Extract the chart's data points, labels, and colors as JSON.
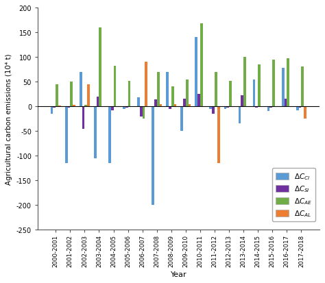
{
  "categories": [
    "2000-2001",
    "2001-2002",
    "2002-2003",
    "2003-2004",
    "2004-2005",
    "2005-2006",
    "2006-2007",
    "2007-2008",
    "2008-2009",
    "2009-2010",
    "2010-2011",
    "2011-2012",
    "2012-2013",
    "2013-2014",
    "2014-2015",
    "2015-2016",
    "2016-2017",
    "2017-2018"
  ],
  "CI": [
    -15,
    -115,
    70,
    -105,
    -115,
    -5,
    18,
    -200,
    70,
    -50,
    140,
    -5,
    -5,
    -35,
    55,
    -10,
    78,
    -8
  ],
  "SI": [
    -3,
    -3,
    -45,
    20,
    -8,
    -3,
    -20,
    14,
    -5,
    16,
    25,
    -15,
    -3,
    22,
    -3,
    -3,
    15,
    -3
  ],
  "AE": [
    45,
    50,
    3,
    160,
    82,
    52,
    -25,
    70,
    40,
    55,
    168,
    70,
    52,
    100,
    85,
    95,
    97,
    81
  ],
  "AL": [
    2,
    3,
    45,
    0,
    0,
    0,
    90,
    5,
    5,
    5,
    0,
    -115,
    0,
    0,
    0,
    0,
    0,
    -25
  ],
  "color_CI": "#5b9bd5",
  "color_SI": "#7030a0",
  "color_AE": "#70ad47",
  "color_AL": "#ed7d31",
  "ylabel": "Agricultural carbon emissions (10⁴ t)",
  "xlabel": "Year",
  "ylim": [
    -250,
    200
  ],
  "yticks": [
    -250,
    -200,
    -150,
    -100,
    -50,
    0,
    50,
    100,
    150,
    200
  ],
  "bar_width": 0.18,
  "figsize": [
    4.74,
    4.14
  ],
  "dpi": 100
}
